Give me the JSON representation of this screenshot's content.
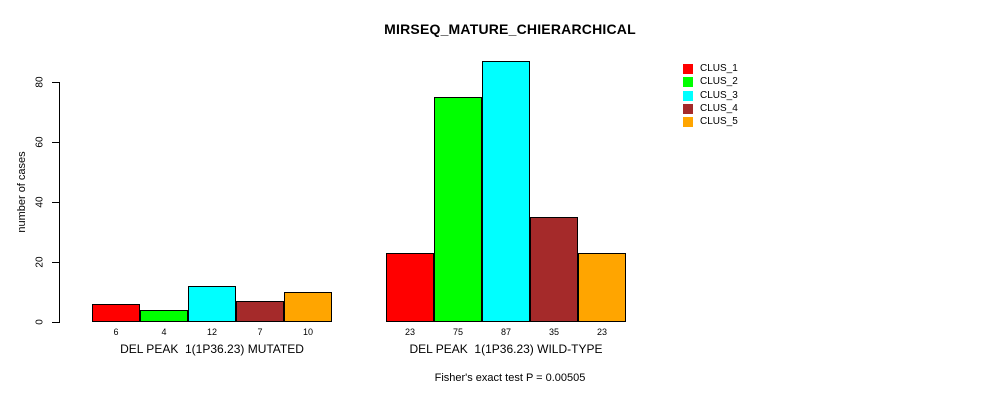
{
  "window": {
    "background_color": "#ffffff",
    "text_color": "#000000",
    "axis_color": "#000000",
    "bar_border_color": "#000000"
  },
  "chart_data": {
    "type": "bar",
    "title": "MIRSEQ_MATURE_CHIERARCHICAL",
    "ylabel": "number of cases",
    "xlabel": "",
    "ylim": [
      0,
      80
    ],
    "yticks": [
      0,
      20,
      40,
      60,
      80
    ],
    "grid": false,
    "legend_position": "top-right",
    "bar_value_labels_shown": true,
    "groups": [
      {
        "label": "DEL PEAK  1(1P36.23) MUTATED",
        "values": [
          6,
          4,
          12,
          7,
          10
        ]
      },
      {
        "label": "DEL PEAK  1(1P36.23) WILD-TYPE",
        "values": [
          23,
          75,
          87,
          35,
          23
        ]
      }
    ],
    "series": [
      {
        "name": "CLUS_1",
        "color": "#FF0000",
        "values": [
          6,
          23
        ]
      },
      {
        "name": "CLUS_2",
        "color": "#00FF00",
        "values": [
          4,
          75
        ]
      },
      {
        "name": "CLUS_3",
        "color": "#00FFFF",
        "values": [
          12,
          87
        ]
      },
      {
        "name": "CLUS_4",
        "color": "#A52A2A",
        "values": [
          7,
          35
        ]
      },
      {
        "name": "CLUS_5",
        "color": "#FFA500",
        "values": [
          10,
          23
        ]
      }
    ],
    "footnote": "Fisher's exact test P = 0.00505"
  }
}
